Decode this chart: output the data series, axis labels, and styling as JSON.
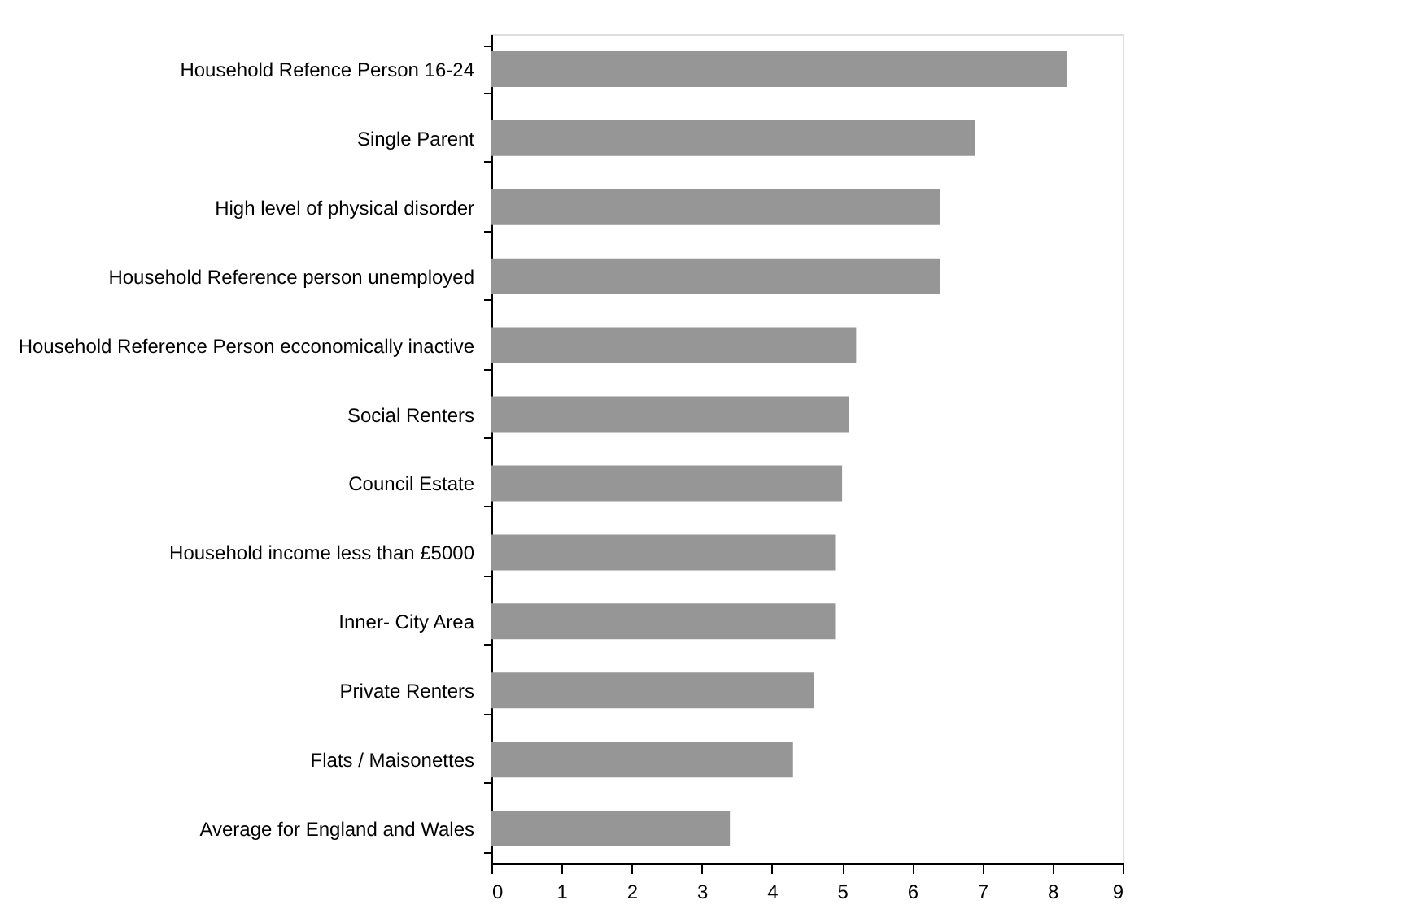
{
  "chart_data": {
    "type": "bar",
    "orientation": "horizontal",
    "categories": [
      "Household Refence Person 16-24",
      "Single Parent",
      "High level of physical disorder",
      "Household Reference person unemployed",
      "Household Reference Person ecconomically inactive",
      "Social Renters",
      "Council Estate",
      "Household income less than £5000",
      "Inner- City Area",
      "Private Renters",
      "Flats / Maisonettes",
      "Average for England and Wales"
    ],
    "values": [
      8.2,
      6.9,
      6.4,
      6.4,
      5.2,
      5.1,
      5.0,
      4.9,
      4.9,
      4.6,
      4.3,
      3.4
    ],
    "color": "#969696",
    "xlim": [
      0,
      9
    ],
    "xticks": [
      0,
      1,
      2,
      3,
      4,
      5,
      6,
      7,
      8,
      9
    ],
    "grid": false
  }
}
